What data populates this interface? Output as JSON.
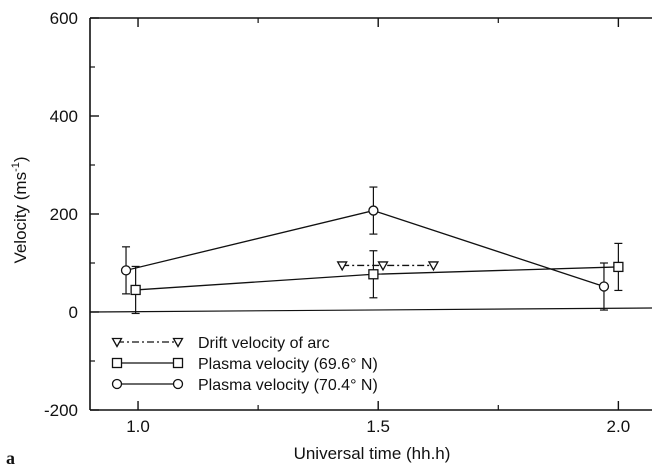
{
  "chart_data": {
    "type": "line",
    "panel_label": "a",
    "xlabel": "Universal time (hh.h)",
    "ylabel_main": "Velocity (ms",
    "ylabel_sup": "-1",
    "ylabel_close": ")",
    "xlim": [
      0.9,
      2.07
    ],
    "ylim": [
      -200,
      600
    ],
    "x_ticks": [
      {
        "value": 1.0,
        "label": "1.0"
      },
      {
        "value": 1.5,
        "label": "1.5"
      },
      {
        "value": 2.0,
        "label": "2.0"
      }
    ],
    "y_ticks": [
      {
        "value": -200,
        "label": "-200"
      },
      {
        "value": 0,
        "label": "0"
      },
      {
        "value": 200,
        "label": "200"
      },
      {
        "value": 400,
        "label": "400"
      },
      {
        "value": 600,
        "label": "600"
      }
    ],
    "zero_line": true,
    "grid": false,
    "legend_position": "bottom-left",
    "series": [
      {
        "name": "Drift velocity of arc",
        "marker": "triangle-down",
        "line_style": "dash-dot",
        "x": [
          1.425,
          1.51,
          1.615
        ],
        "y": [
          95,
          95,
          95
        ],
        "err": [
          null,
          null,
          null
        ]
      },
      {
        "name": "Plasma velocity (69.6° N)",
        "marker": "square",
        "line_style": "solid",
        "x": [
          0.995,
          1.49,
          2.0
        ],
        "y": [
          45,
          77,
          92
        ],
        "err": [
          48,
          48,
          48
        ]
      },
      {
        "name": "Plasma velocity (70.4° N)",
        "marker": "circle",
        "line_style": "solid",
        "x": [
          0.975,
          1.49,
          1.97
        ],
        "y": [
          85,
          207,
          52
        ],
        "err": [
          48,
          48,
          48
        ]
      }
    ]
  }
}
